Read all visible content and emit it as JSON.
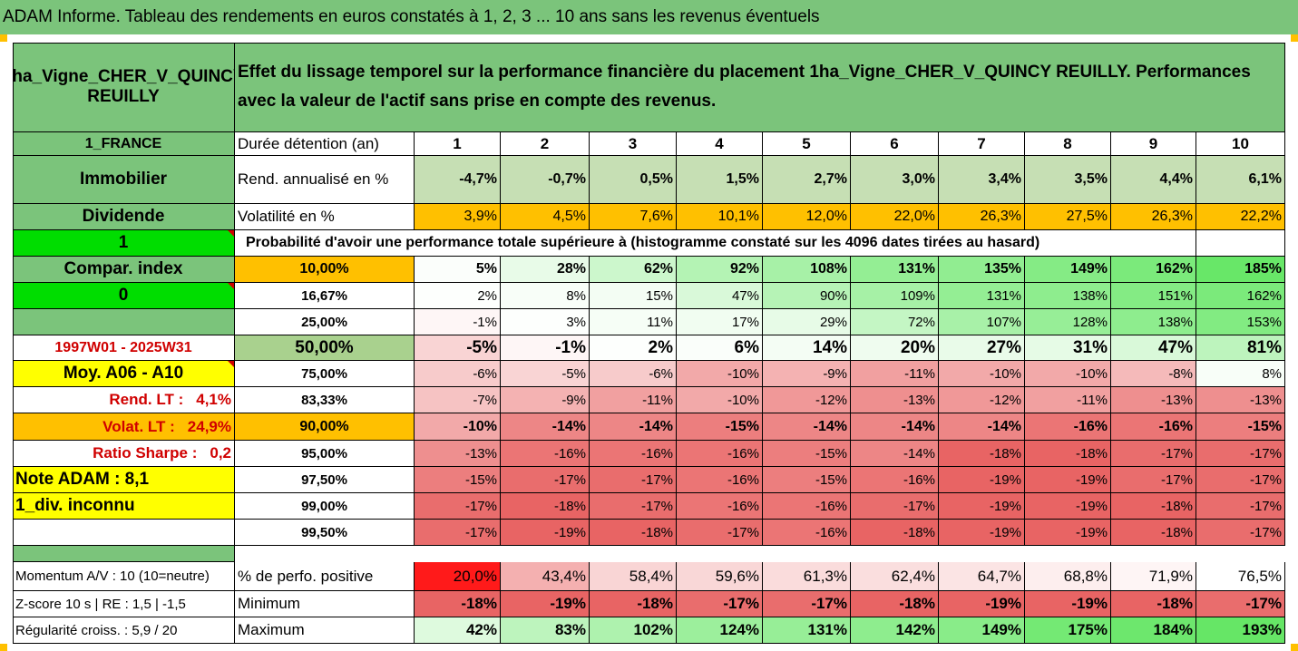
{
  "title": "ADAM Informe. Tableau des rendements en euros constatés à 1, 2, 3 ... 10 ans sans les revenus éventuels",
  "asset_name": "1ha_Vigne_CHER_V_QUINCY REUILLY",
  "description": "Effet du lissage temporel sur la performance financière du placement 1ha_Vigne_CHER_V_QUINCY REUILLY. Performances avec la valeur de l'actif sans prise en compte des revenus.",
  "years": [
    "1",
    "2",
    "3",
    "4",
    "5",
    "6",
    "7",
    "8",
    "9",
    "10"
  ],
  "left_labels": {
    "country": "1_FRANCE",
    "category": "Immobilier",
    "dividend": "Dividende",
    "dividend_value": "1",
    "compar_index": "Compar. index",
    "compar_value": "0",
    "period": "1997W01 - 2025W31",
    "moy": "Moy. A06 - A10",
    "rend_lt_label": "Rend. LT :",
    "rend_lt_value": "4,1%",
    "volat_lt_label": "Volat. LT :",
    "volat_lt_value": "24,9%",
    "sharpe_label": "Ratio Sharpe :",
    "sharpe_value": "0,2",
    "note": "Note ADAM : 8,1",
    "div_status": "1_div. inconnu",
    "momentum": "Momentum A/V : 10 (10=neutre)",
    "zscore": "Z-score 10 s | RE : 1,5 | -1,5",
    "regularite": "Régularité croiss. : 5,9 / 20"
  },
  "row_labels": {
    "duration": "Durée détention (an)",
    "rend": "Rend. annualisé en %",
    "volat": "Volatilité en %",
    "proba": "Probabilité d'avoir une performance totale supérieure à (histogramme constaté sur les 4096 dates tirées au hasard)",
    "pct_positive": "% de perfo. positive",
    "minimum": "Minimum",
    "maximum": "Maximum"
  },
  "rend": [
    "-4,7%",
    "-0,7%",
    "0,5%",
    "1,5%",
    "2,7%",
    "3,0%",
    "3,4%",
    "3,5%",
    "4,4%",
    "6,1%"
  ],
  "volat": [
    "3,9%",
    "4,5%",
    "7,6%",
    "10,1%",
    "12,0%",
    "22,0%",
    "26,3%",
    "27,5%",
    "26,3%",
    "22,2%"
  ],
  "quantiles": [
    {
      "p": "10,00%",
      "vals": [
        "5%",
        "28%",
        "62%",
        "92%",
        "108%",
        "131%",
        "135%",
        "149%",
        "162%",
        "185%"
      ]
    },
    {
      "p": "16,67%",
      "vals": [
        "2%",
        "8%",
        "15%",
        "47%",
        "90%",
        "109%",
        "131%",
        "138%",
        "151%",
        "162%"
      ]
    },
    {
      "p": "25,00%",
      "vals": [
        "-1%",
        "3%",
        "11%",
        "17%",
        "29%",
        "72%",
        "107%",
        "128%",
        "138%",
        "153%"
      ]
    },
    {
      "p": "50,00%",
      "vals": [
        "-5%",
        "-1%",
        "2%",
        "6%",
        "14%",
        "20%",
        "27%",
        "31%",
        "47%",
        "81%"
      ]
    },
    {
      "p": "75,00%",
      "vals": [
        "-6%",
        "-5%",
        "-6%",
        "-10%",
        "-9%",
        "-11%",
        "-10%",
        "-10%",
        "-8%",
        "8%"
      ]
    },
    {
      "p": "83,33%",
      "vals": [
        "-7%",
        "-9%",
        "-11%",
        "-10%",
        "-12%",
        "-13%",
        "-12%",
        "-11%",
        "-13%",
        "-13%"
      ]
    },
    {
      "p": "90,00%",
      "vals": [
        "-10%",
        "-14%",
        "-14%",
        "-15%",
        "-14%",
        "-14%",
        "-14%",
        "-16%",
        "-16%",
        "-15%"
      ]
    },
    {
      "p": "95,00%",
      "vals": [
        "-13%",
        "-16%",
        "-16%",
        "-16%",
        "-15%",
        "-14%",
        "-18%",
        "-18%",
        "-17%",
        "-17%"
      ]
    },
    {
      "p": "97,50%",
      "vals": [
        "-15%",
        "-17%",
        "-17%",
        "-16%",
        "-15%",
        "-16%",
        "-19%",
        "-19%",
        "-17%",
        "-17%"
      ]
    },
    {
      "p": "99,00%",
      "vals": [
        "-17%",
        "-18%",
        "-17%",
        "-16%",
        "-16%",
        "-17%",
        "-19%",
        "-19%",
        "-18%",
        "-17%"
      ]
    },
    {
      "p": "99,50%",
      "vals": [
        "-17%",
        "-19%",
        "-18%",
        "-17%",
        "-16%",
        "-18%",
        "-19%",
        "-19%",
        "-18%",
        "-17%"
      ]
    }
  ],
  "pct_positive": [
    "20,0%",
    "43,4%",
    "58,4%",
    "59,6%",
    "61,3%",
    "62,4%",
    "64,7%",
    "68,8%",
    "71,9%",
    "76,5%"
  ],
  "minimum": [
    "-18%",
    "-19%",
    "-18%",
    "-17%",
    "-17%",
    "-18%",
    "-19%",
    "-19%",
    "-18%",
    "-17%"
  ],
  "maximum": [
    "42%",
    "83%",
    "102%",
    "124%",
    "131%",
    "142%",
    "149%",
    "175%",
    "184%",
    "193%"
  ],
  "colors": {
    "header_green": "#7bc47b",
    "bright_green": "#00dd00",
    "yellow": "#ffff00",
    "orange": "#ffc000",
    "red_text": "#d00000"
  }
}
